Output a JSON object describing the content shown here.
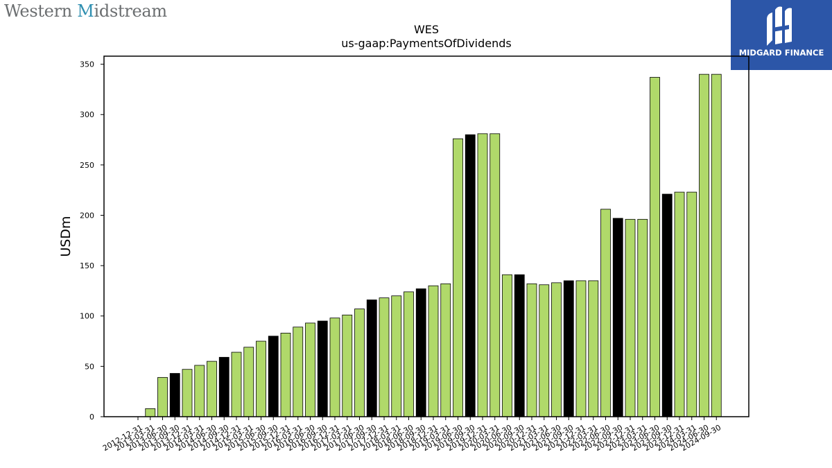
{
  "branding": {
    "company_logo": {
      "before": "Western ",
      "accent": "M",
      "after": "idstream"
    },
    "publisher_logo": {
      "name": "MIDGARD FINANCE",
      "icon": "midgard-monogram-icon",
      "background": "#2c56a8"
    }
  },
  "chart_data": {
    "type": "bar",
    "title": "WES",
    "subtitle": "us-gaap:PaymentsOfDividends",
    "xlabel": "",
    "ylabel": "USDm",
    "ylim": [
      0,
      358
    ],
    "yticks": [
      0,
      50,
      100,
      150,
      200,
      250,
      300,
      350
    ],
    "grid": false,
    "colors": {
      "default": "#b0d96a",
      "highlight": "#000000",
      "edge": "#000000"
    },
    "categories": [
      "2012-12-31",
      "2013-03-31",
      "2013-06-30",
      "2013-09-30",
      "2013-12-31",
      "2014-03-31",
      "2014-06-30",
      "2014-09-30",
      "2014-12-31",
      "2015-03-31",
      "2015-06-30",
      "2015-09-30",
      "2015-12-31",
      "2016-03-31",
      "2016-06-30",
      "2016-09-30",
      "2016-12-31",
      "2017-03-31",
      "2017-06-30",
      "2017-09-30",
      "2017-12-31",
      "2018-03-31",
      "2018-06-30",
      "2018-09-30",
      "2018-12-31",
      "2019-03-31",
      "2019-06-30",
      "2019-09-30",
      "2019-12-31",
      "2020-03-31",
      "2020-06-30",
      "2020-09-30",
      "2020-12-31",
      "2021-03-31",
      "2021-06-30",
      "2021-09-30",
      "2021-12-31",
      "2022-03-31",
      "2022-06-30",
      "2022-09-30",
      "2022-12-31",
      "2023-03-31",
      "2023-06-30",
      "2023-09-30",
      "2023-12-31",
      "2024-03-31",
      "2024-06-30",
      "2024-09-30"
    ],
    "values": [
      0,
      8,
      39,
      43,
      47,
      51,
      55,
      59,
      64,
      69,
      75,
      80,
      83,
      89,
      93,
      95,
      98,
      101,
      107,
      116,
      118,
      120,
      124,
      127,
      130,
      132,
      276,
      280,
      281,
      281,
      141,
      141,
      132,
      131,
      133,
      135,
      135,
      135,
      206,
      197,
      196,
      196,
      337,
      221,
      223,
      223,
      340,
      340
    ],
    "highlighted": [
      false,
      false,
      false,
      true,
      false,
      false,
      false,
      true,
      false,
      false,
      false,
      true,
      false,
      false,
      false,
      true,
      false,
      false,
      false,
      true,
      false,
      false,
      false,
      true,
      false,
      false,
      false,
      true,
      false,
      false,
      false,
      true,
      false,
      false,
      false,
      true,
      false,
      false,
      false,
      true,
      false,
      false,
      false,
      true,
      false,
      false,
      false,
      false
    ]
  }
}
